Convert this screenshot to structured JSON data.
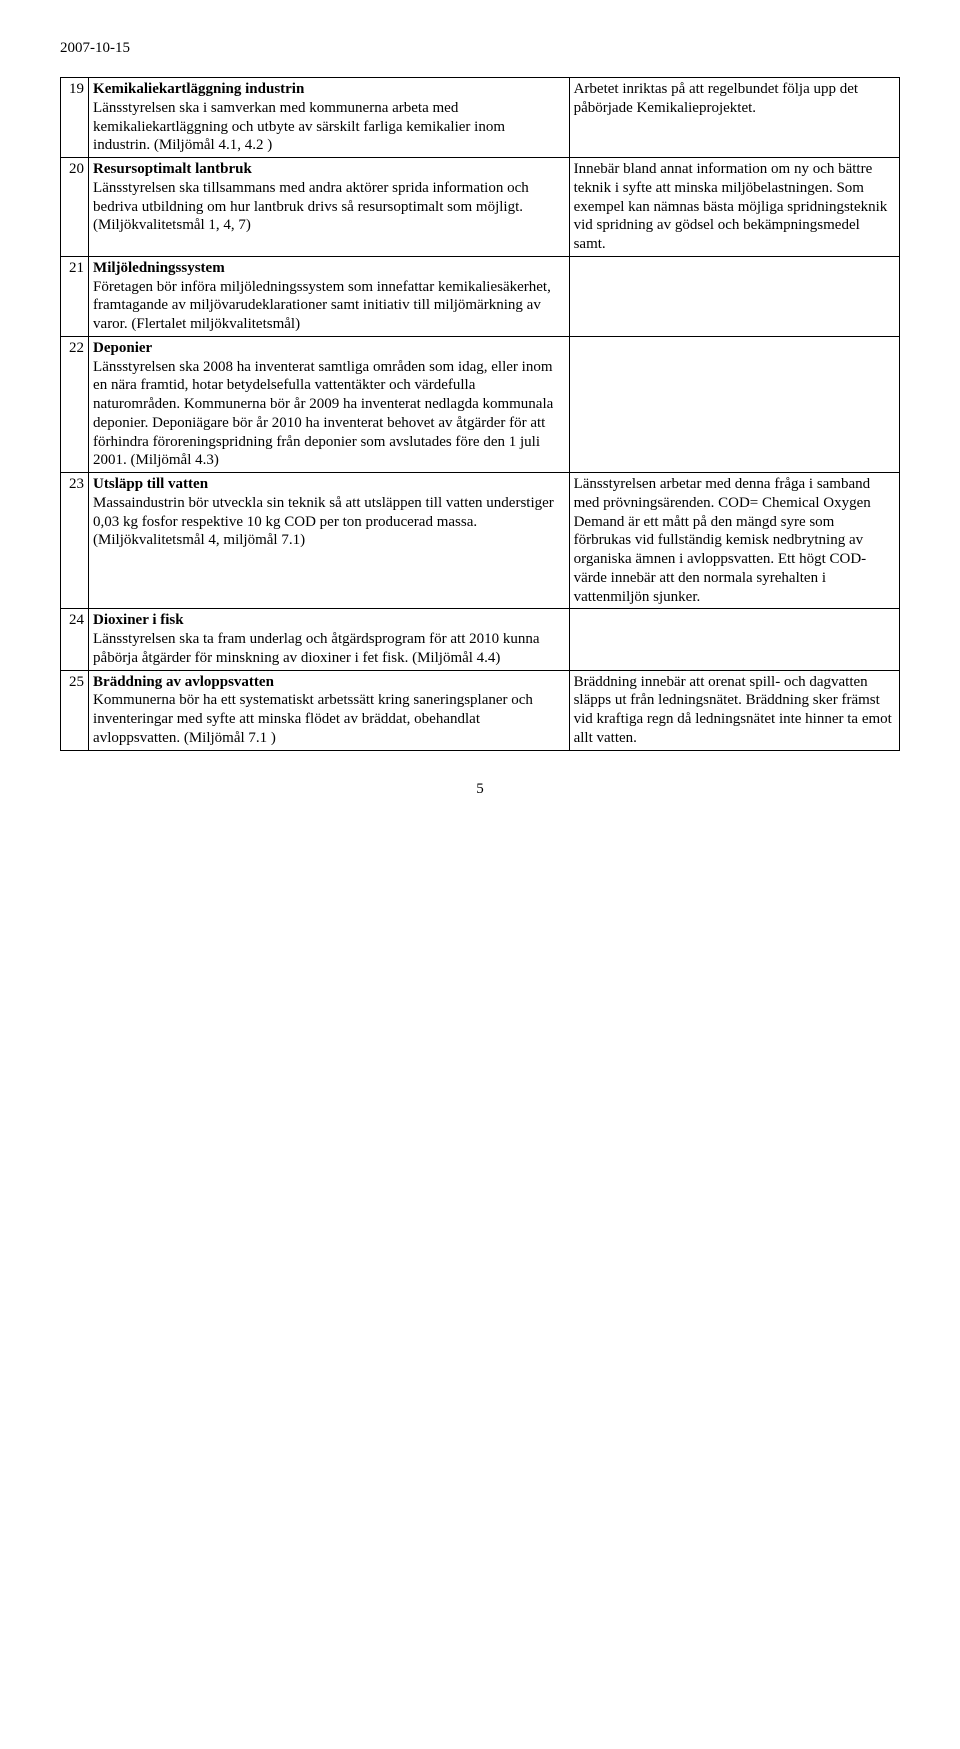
{
  "date": "2007-10-15",
  "page_number": "5",
  "rows": [
    {
      "num": "19",
      "title": "Kemikaliekartläggning industrin",
      "body": "Länsstyrelsen ska i samverkan med kommunerna arbeta med kemikaliekartläggning och utbyte av särskilt farliga kemikalier inom industrin. (Miljömål 4.1, 4.2 )",
      "side": "Arbetet inriktas på att regelbundet följa upp det påbörjade Kemikalieprojektet."
    },
    {
      "num": "20",
      "title": "Resursoptimalt lantbruk",
      "body": "Länsstyrelsen ska tillsammans med andra aktörer sprida information och bedriva utbildning om hur lantbruk drivs så resursoptimalt som möjligt. (Miljökvalitetsmål 1, 4, 7)",
      "side": "Innebär bland annat information om ny och bättre teknik i syfte att minska miljöbelastningen. Som exempel kan nämnas bästa möjliga spridningsteknik vid spridning av gödsel och bekämpningsmedel samt."
    },
    {
      "num": "21",
      "title": "Miljöledningssystem",
      "body": "Företagen bör införa miljöledningssystem som innefattar kemikaliesäkerhet, framtagande av miljövarudeklarationer samt initiativ till miljömärkning av varor. (Flertalet miljökvalitetsmål)",
      "side": ""
    },
    {
      "num": "22",
      "title": "Deponier",
      "body": "Länsstyrelsen ska 2008 ha inventerat samtliga områden som idag, eller inom en nära framtid, hotar betydelsefulla vattentäkter och värdefulla naturområden. Kommunerna bör år 2009 ha inventerat nedlagda kommunala deponier. Deponiägare bör år 2010 ha inventerat behovet av åtgärder för att förhindra föroreningspridning från deponier som avslutades före den 1 juli 2001. (Miljömål 4.3)",
      "side": ""
    },
    {
      "num": "23",
      "title": "Utsläpp till vatten",
      "body": "Massaindustrin bör utveckla sin teknik så att utsläppen till vatten understiger 0,03 kg fosfor respektive 10 kg COD per ton producerad massa. (Miljökvalitetsmål 4, miljömål 7.1)",
      "side": "Länsstyrelsen arbetar med denna fråga i samband med prövningsärenden. COD= Chemical Oxygen Demand är ett mått på den mängd syre som förbrukas vid fullständig kemisk nedbrytning av organiska ämnen i avloppsvatten. Ett högt COD-värde innebär att den normala syrehalten i vattenmiljön sjunker."
    },
    {
      "num": "24",
      "title": "Dioxiner i fisk",
      "body": "Länsstyrelsen ska ta fram underlag och åtgärdsprogram för att 2010 kunna påbörja åtgärder för minskning av dioxiner i fet fisk. (Miljömål 4.4)",
      "side": ""
    },
    {
      "num": "25",
      "title": "Bräddning av avloppsvatten",
      "body": "Kommunerna bör ha ett systematiskt arbetssätt kring saneringsplaner och inventeringar med syfte att minska flödet av bräddat, obehandlat avloppsvatten. (Miljömål 7.1 )",
      "side": "Bräddning innebär att orenat spill- och dagvatten släpps ut från ledningsnätet. Bräddning sker främst vid kraftiga regn då ledningsnätet inte hinner ta emot allt vatten."
    }
  ]
}
